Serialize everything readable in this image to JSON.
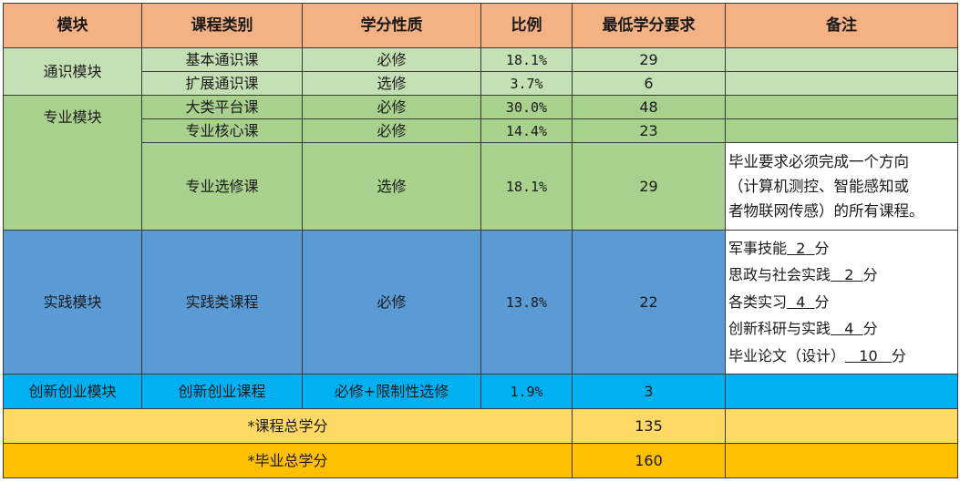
{
  "headers": [
    "模块",
    "课程类别",
    "学分性质",
    "比例",
    "最低学分要求",
    "备注"
  ],
  "rows": {
    "general_basic": {
      "module": "通识模块",
      "category": "基本通识课",
      "nature": "必修",
      "ratio": "18.1%",
      "credits": "29",
      "note": ""
    },
    "general_ext": {
      "category": "扩展通识课",
      "nature": "选修",
      "ratio": "3.7%",
      "credits": "6",
      "note": ""
    },
    "major_platform": {
      "module": "专业模块",
      "category": "大类平台课",
      "nature": "必修",
      "ratio": "30.0%",
      "credits": "48",
      "note": ""
    },
    "major_core": {
      "category": "专业核心课",
      "nature": "必修",
      "ratio": "14.4%",
      "credits": "23",
      "note": ""
    },
    "major_elective": {
      "category": "专业选修课",
      "nature": "选修",
      "ratio": "18.1%",
      "credits": "29",
      "note_lines": [
        "毕业要求必须完成一个方向",
        "（计算机测控、智能感知或",
        "者物联网传感）的所有课程。"
      ]
    },
    "practice": {
      "module": "实践模块",
      "category": "实践类课程",
      "nature": "必修",
      "ratio": "13.8%",
      "credits": "22",
      "note_items": [
        {
          "label": "军事技能",
          "value": "2",
          "unit": "分"
        },
        {
          "label": "思政与社会实践",
          "value": "2",
          "unit": "分"
        },
        {
          "label": "各类实习",
          "value": "4",
          "unit": "分"
        },
        {
          "label": "创新科研与实践",
          "value": "4",
          "unit": "分"
        },
        {
          "label": "毕业论文（设计）",
          "value": "10",
          "unit": "分"
        }
      ]
    },
    "innovation": {
      "module": "创新创业模块",
      "category": "创新创业课程",
      "nature": "必修+限制性选修",
      "ratio": "1.9%",
      "credits": "3",
      "note": ""
    }
  },
  "totals": {
    "course_total_label": "*课程总学分",
    "course_total_value": "135",
    "grad_total_label": "*毕业总学分",
    "grad_total_value": "160"
  },
  "colors": {
    "header": "#f4b183",
    "general": "#c5e0b4",
    "major": "#a9d18e",
    "practice": "#5b9bd5",
    "innovation": "#00b0f0",
    "total1": "#ffd966",
    "total2": "#ffc000"
  }
}
